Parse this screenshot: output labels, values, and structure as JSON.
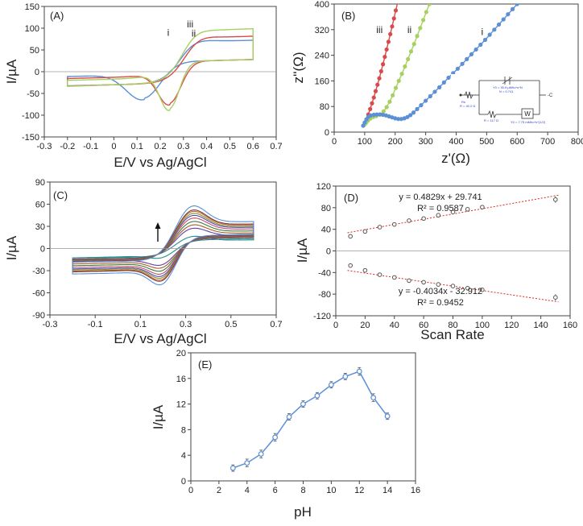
{
  "chart_data": [
    {
      "id": "A",
      "type": "line",
      "panel_label": "(A)",
      "xlabel": "E/V vs Ag/AgCl",
      "ylabel": "I/µA",
      "xlim": [
        -0.3,
        0.7
      ],
      "ylim": [
        -150,
        150
      ],
      "xticks": [
        -0.3,
        -0.2,
        -0.1,
        0,
        0.1,
        0.2,
        0.3,
        0.4,
        0.5,
        0.6,
        0.7
      ],
      "yticks": [
        -150,
        -100,
        -50,
        0,
        50,
        100,
        150
      ],
      "series": [
        {
          "name": "i",
          "color": "#5b8fd6",
          "label_at": [
            0.23,
            82
          ],
          "params": {
            "ia": 75,
            "ic": 80,
            "Ea": 0.31,
            "Ec": 0.13,
            "wa": 0.11,
            "wc": 0.1,
            "k": 12
          }
        },
        {
          "name": "ii",
          "color": "#d94b4b",
          "label_at": [
            0.335,
            81
          ],
          "params": {
            "ia": 82,
            "ic": 93,
            "Ea": 0.33,
            "Ec": 0.24,
            "wa": 0.1,
            "wc": 0.07,
            "k": 16
          }
        },
        {
          "name": "iii",
          "color": "#a8d060",
          "label_at": [
            0.315,
            102
          ],
          "params": {
            "ia": 98,
            "ic": 105,
            "Ea": 0.32,
            "Ec": 0.24,
            "wa": 0.09,
            "wc": 0.06,
            "k": 18
          }
        }
      ]
    },
    {
      "id": "B",
      "type": "scatter",
      "panel_label": "(B)",
      "xlabel": "z'(Ω)",
      "ylabel": "z''(Ω)",
      "xlim": [
        0,
        800
      ],
      "ylim": [
        0,
        400
      ],
      "xticks": [
        0,
        100,
        200,
        300,
        400,
        500,
        600,
        700,
        800
      ],
      "yticks": [
        0,
        80,
        160,
        240,
        320,
        400
      ],
      "series": [
        {
          "name": "iii",
          "color": "#d94b4b",
          "label_at": [
            138,
            310
          ],
          "points": [
            [
              100,
              25
            ],
            [
              106,
              40
            ],
            [
              112,
              55
            ],
            [
              118,
              72
            ],
            [
              124,
              90
            ],
            [
              130,
              108
            ],
            [
              136,
              128
            ],
            [
              142,
              148
            ],
            [
              148,
              168
            ],
            [
              154,
              190
            ],
            [
              160,
              212
            ],
            [
              166,
              235
            ],
            [
              172,
              258
            ],
            [
              178,
              282
            ],
            [
              184,
              306
            ],
            [
              190,
              330
            ],
            [
              196,
              355
            ],
            [
              202,
              380
            ],
            [
              208,
              405
            ]
          ]
        },
        {
          "name": "ii",
          "color": "#a8d060",
          "label_at": [
            240,
            310
          ],
          "points": [
            [
              98,
              22
            ],
            [
              104,
              28
            ],
            [
              110,
              35
            ],
            [
              118,
              42
            ],
            [
              128,
              47
            ],
            [
              138,
              50
            ],
            [
              150,
              55
            ],
            [
              162,
              65
            ],
            [
              172,
              78
            ],
            [
              182,
              95
            ],
            [
              192,
              115
            ],
            [
              202,
              138
            ],
            [
              212,
              160
            ],
            [
              222,
              182
            ],
            [
              232,
              205
            ],
            [
              242,
              228
            ],
            [
              252,
              252
            ],
            [
              262,
              275
            ],
            [
              272,
              300
            ],
            [
              282,
              325
            ],
            [
              292,
              350
            ],
            [
              302,
              375
            ],
            [
              312,
              400
            ]
          ]
        },
        {
          "name": "i",
          "color": "#5b8fd6",
          "label_at": [
            482,
            303
          ],
          "points": [
            [
              95,
              20
            ],
            [
              100,
              30
            ],
            [
              106,
              40
            ],
            [
              112,
              48
            ],
            [
              120,
              52
            ],
            [
              130,
              54
            ],
            [
              140,
              55
            ],
            [
              150,
              55
            ],
            [
              160,
              54
            ],
            [
              170,
              52
            ],
            [
              180,
              49
            ],
            [
              190,
              46
            ],
            [
              200,
              43
            ],
            [
              210,
              41
            ],
            [
              220,
              41
            ],
            [
              230,
              43
            ],
            [
              240,
              47
            ],
            [
              250,
              53
            ],
            [
              260,
              61
            ],
            [
              272,
              72
            ],
            [
              285,
              84
            ],
            [
              300,
              98
            ],
            [
              315,
              112
            ],
            [
              330,
              126
            ],
            [
              345,
              140
            ],
            [
              360,
              155
            ],
            [
              375,
              170
            ],
            [
              390,
              184
            ],
            [
              405,
              198
            ],
            [
              420,
              213
            ],
            [
              435,
              228
            ],
            [
              450,
              243
            ],
            [
              465,
              258
            ],
            [
              480,
              273
            ],
            [
              495,
              288
            ],
            [
              510,
              304
            ],
            [
              525,
              320
            ],
            [
              540,
              336
            ],
            [
              555,
              352
            ],
            [
              570,
              368
            ],
            [
              585,
              384
            ],
            [
              600,
              400
            ]
          ]
        }
      ],
      "inset_circuit": {
        "rs_label": "Rs",
        "rs_value": "R = 40.2 Ω",
        "q_label": "Y0 = 30.9 µMho*s^N",
        "q_n": "N = 0.741",
        "rct_value": "R = 117 Ω",
        "w_symbol": "W",
        "w_value": "Y0 = 7.75 mMho*s^(1/2)"
      }
    },
    {
      "id": "C",
      "type": "line",
      "panel_label": "(C)",
      "xlabel": "E/V vs Ag/AgCl",
      "ylabel": "I/µA",
      "xlim": [
        -0.3,
        0.7
      ],
      "ylim": [
        -90,
        90
      ],
      "xticks": [
        -0.3,
        -0.1,
        0.1,
        0.3,
        0.5,
        0.7
      ],
      "yticks": [
        -90,
        -60,
        -30,
        0,
        30,
        60,
        90
      ],
      "arrow_direction": "up",
      "series_peak_currents": [
        18,
        30,
        35,
        40,
        45,
        49,
        52,
        55,
        57,
        63
      ],
      "series_colors": [
        "#2a8c8c",
        "#6b3fa0",
        "#a35c2a",
        "#3c7a3a",
        "#c84a6a",
        "#4a4ab0",
        "#8a8a2a",
        "#c0703a",
        "#7a3a3a",
        "#5b8fd6"
      ]
    },
    {
      "id": "D",
      "type": "scatter",
      "panel_label": "(D)",
      "xlabel": "Scan Rate",
      "ylabel": "I/µA",
      "xlim": [
        0,
        160
      ],
      "ylim": [
        -120,
        120
      ],
      "xticks": [
        0,
        20,
        40,
        60,
        80,
        100,
        120,
        140,
        160
      ],
      "yticks": [
        -120,
        -80,
        -40,
        0,
        40,
        80,
        120
      ],
      "x": [
        10,
        20,
        30,
        40,
        50,
        60,
        70,
        80,
        90,
        100,
        150
      ],
      "series": [
        {
          "name": "anodic",
          "values": [
            27,
            36,
            44,
            49,
            56,
            60,
            66,
            72,
            77,
            81,
            95
          ],
          "errors": [
            4,
            3,
            3,
            3,
            3,
            3,
            3,
            3,
            3,
            3,
            6
          ],
          "fit": {
            "slope": 0.4829,
            "intercept": 29.741
          },
          "equation": "y = 0.4829x + 29.741",
          "r2": "R² = 0.9587"
        },
        {
          "name": "cathodic",
          "values": [
            -27,
            -36,
            -44,
            -49,
            -55,
            -58,
            -62,
            -65,
            -69,
            -72,
            -86
          ],
          "errors": [
            4,
            3,
            3,
            3,
            3,
            3,
            3,
            3,
            3,
            3,
            6
          ],
          "fit": {
            "slope": -0.4034,
            "intercept": -32.912
          },
          "equation": "y = -0.4034x - 32.912",
          "r2": "R² = 0.9452"
        }
      ],
      "marker_color": "#555555",
      "fit_color": "#e0281e"
    },
    {
      "id": "E",
      "type": "line",
      "panel_label": "(E)",
      "xlabel": "pH",
      "ylabel": "I/µA",
      "xlim": [
        0,
        16
      ],
      "ylim": [
        0,
        20
      ],
      "xticks": [
        0,
        2,
        4,
        6,
        8,
        10,
        12,
        14,
        16
      ],
      "yticks": [
        0,
        4,
        8,
        12,
        16,
        20
      ],
      "x": [
        3,
        4,
        5,
        6,
        7,
        8,
        9,
        10,
        11,
        12,
        13,
        14
      ],
      "values": [
        2.0,
        2.8,
        4.2,
        6.8,
        10.0,
        12.0,
        13.3,
        15.0,
        16.3,
        17.1,
        13.0,
        10.1
      ],
      "errors": [
        0.5,
        0.6,
        0.6,
        0.6,
        0.5,
        0.5,
        0.5,
        0.5,
        0.5,
        0.6,
        0.6,
        0.5
      ],
      "color": "#5b8fd6"
    }
  ]
}
